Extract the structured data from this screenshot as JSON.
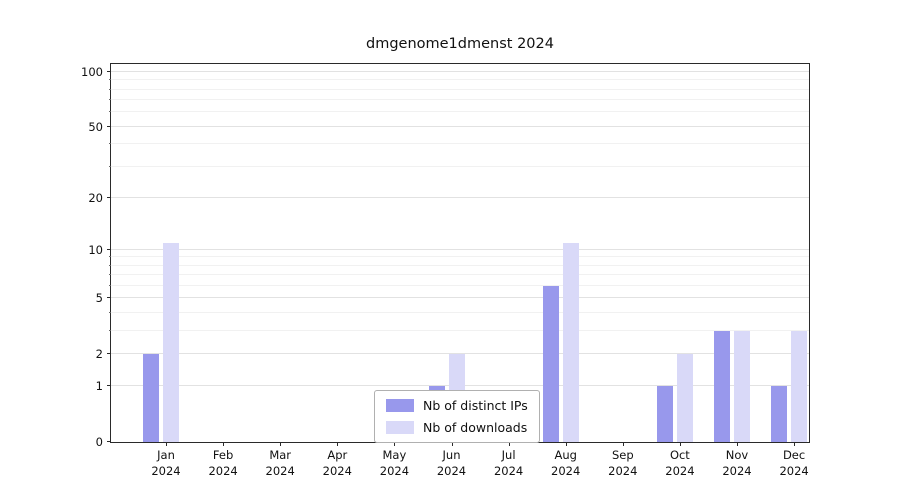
{
  "chart_data": {
    "type": "bar",
    "title": "dmgenome1dmenst 2024",
    "categories": [
      "Jan",
      "Feb",
      "Mar",
      "Apr",
      "May",
      "Jun",
      "Jul",
      "Aug",
      "Sep",
      "Oct",
      "Nov",
      "Dec"
    ],
    "year": "2024",
    "series": [
      {
        "name": "Nb of distinct IPs",
        "color": "#9898ec",
        "values": [
          2,
          0,
          0,
          0,
          0,
          1,
          0,
          6,
          0,
          1,
          3,
          1
        ]
      },
      {
        "name": "Nb of downloads",
        "color": "#d9d9f8",
        "values": [
          11,
          0,
          0,
          0,
          0,
          2,
          0,
          11,
          0,
          2,
          3,
          3
        ]
      }
    ],
    "yscale": "log10(1+x)",
    "yticks": [
      0,
      1,
      2,
      5,
      10,
      20,
      50,
      100
    ],
    "minor_yticks": [
      3,
      4,
      6,
      7,
      8,
      9,
      30,
      40,
      60,
      70,
      80,
      90
    ],
    "ylim": [
      0,
      110
    ],
    "grid": "horizontal",
    "legend_position": "lower center"
  }
}
